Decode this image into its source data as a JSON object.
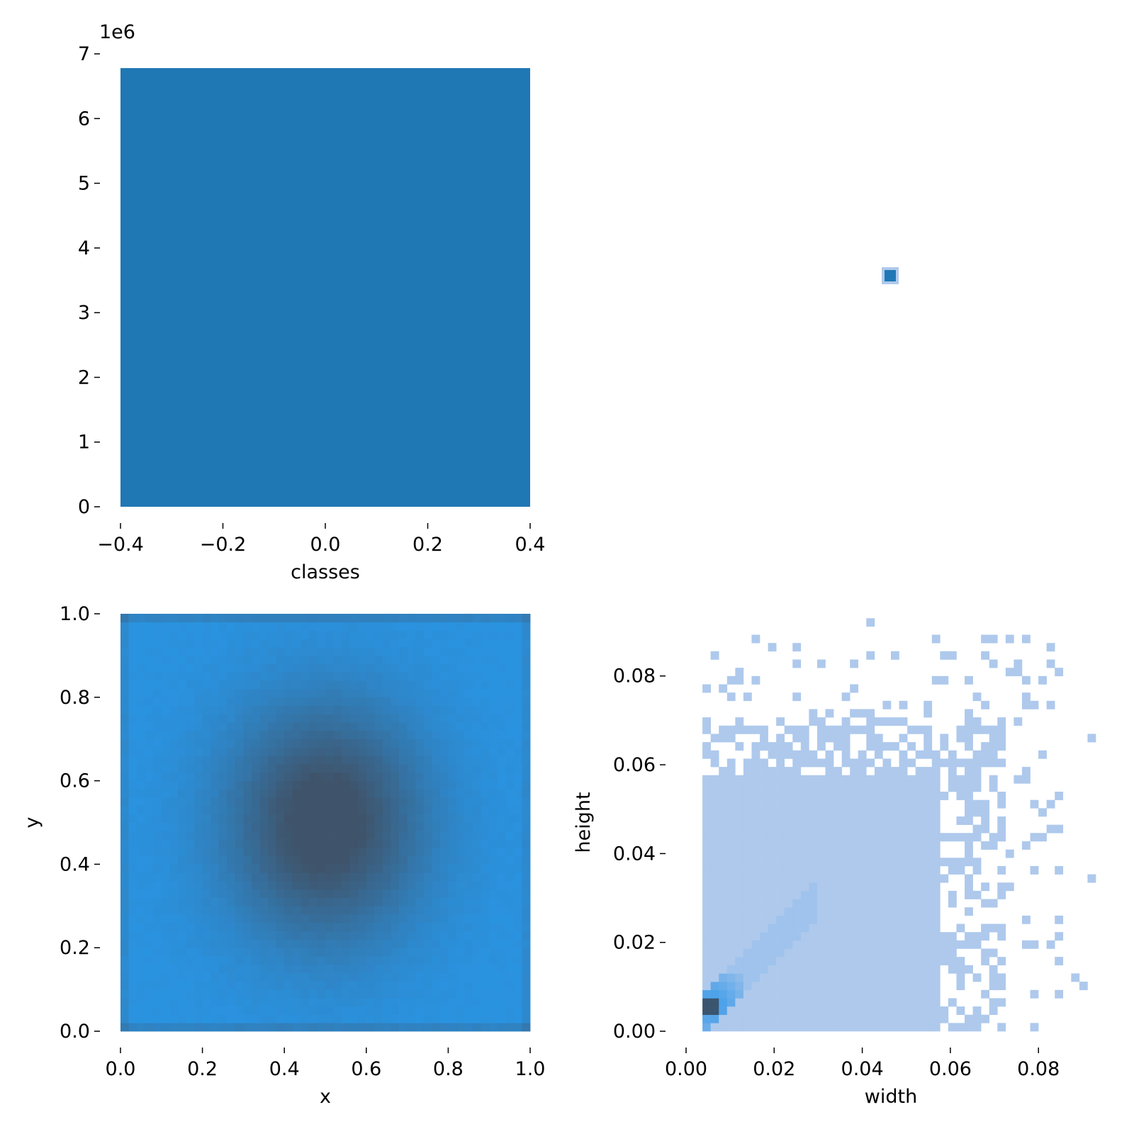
{
  "colors": {
    "bar": "#1f77b4",
    "heat_low": "#2a93e0",
    "heat_high": "#3f546b",
    "hist_light": "#aec9ec",
    "hist_mid": "#3598e8",
    "hist_dark": "#3b556f",
    "tick": "#000000"
  },
  "chart_data": [
    {
      "type": "bar",
      "panel": "classes",
      "xlabel": "classes",
      "ylabel": "",
      "offset_label": "1e6",
      "xlim": [
        -0.4,
        0.4
      ],
      "ylim": [
        0,
        7000000
      ],
      "xticks": [
        -0.4,
        -0.2,
        0.0,
        0.2,
        0.4
      ],
      "xtick_labels": [
        "−0.4",
        "−0.2",
        "0.0",
        "0.2",
        "0.4"
      ],
      "yticks": [
        0,
        1000000,
        2000000,
        3000000,
        4000000,
        5000000,
        6000000,
        7000000
      ],
      "ytick_labels": [
        "0",
        "1",
        "2",
        "3",
        "4",
        "5",
        "6",
        "7"
      ],
      "categories": [
        0
      ],
      "values": [
        6780000
      ],
      "bar_range": [
        -0.4,
        0.4
      ]
    },
    {
      "type": "heatmap",
      "panel": "classes-vs-classes",
      "xlabel": "",
      "ylabel": "",
      "points": [
        [
          0,
          0
        ]
      ]
    },
    {
      "type": "heatmap",
      "panel": "x-vs-y",
      "xlabel": "x",
      "ylabel": "y",
      "xlim": [
        0,
        1
      ],
      "ylim": [
        0,
        1
      ],
      "xticks": [
        0.0,
        0.2,
        0.4,
        0.6,
        0.8,
        1.0
      ],
      "xtick_labels": [
        "0.0",
        "0.2",
        "0.4",
        "0.6",
        "0.8",
        "1.0"
      ],
      "yticks": [
        0.0,
        0.2,
        0.4,
        0.6,
        0.8,
        1.0
      ],
      "ytick_labels": [
        "0.0",
        "0.2",
        "0.4",
        "0.6",
        "0.8",
        "1.0"
      ],
      "bins": [
        50,
        50
      ],
      "peak": [
        0.5,
        0.5
      ]
    },
    {
      "type": "heatmap",
      "panel": "width-vs-height",
      "xlabel": "width",
      "ylabel": "height",
      "xlim": [
        0,
        0.093
      ],
      "ylim": [
        0,
        0.094
      ],
      "xticks": [
        0.0,
        0.02,
        0.04,
        0.06,
        0.08
      ],
      "xtick_labels": [
        "0.00",
        "0.02",
        "0.04",
        "0.06",
        "0.08"
      ],
      "yticks": [
        0.0,
        0.02,
        0.04,
        0.06,
        0.08
      ],
      "ytick_labels": [
        "0.00",
        "0.02",
        "0.04",
        "0.06",
        "0.08"
      ],
      "bin_width": 0.00186,
      "dense_region": {
        "width_max": 0.058,
        "height_max": 0.058
      },
      "peak": [
        0.006,
        0.006
      ]
    }
  ]
}
